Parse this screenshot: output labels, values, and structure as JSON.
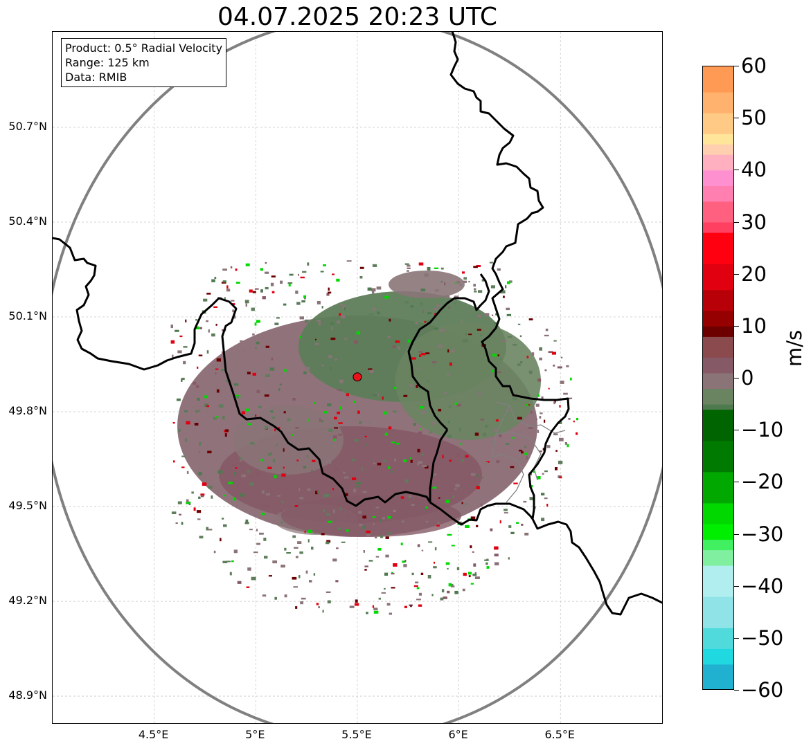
{
  "title": "04.07.2025 20:23 UTC",
  "info_box": {
    "product": "Product: 0.5° Radial Velocity",
    "range": "Range: 125 km",
    "data": "Data: RMIB"
  },
  "map": {
    "lon_range": [
      4.0,
      7.0
    ],
    "lat_range": [
      48.8,
      51.0
    ],
    "gridlines": true,
    "radar_site": {
      "lon": 5.5,
      "lat": 49.91,
      "color": "#e8141a"
    },
    "range_ring_color": "#808080",
    "x_ticks": [
      {
        "value": 4.5,
        "label": "4.5°E"
      },
      {
        "value": 5.0,
        "label": "5°E"
      },
      {
        "value": 5.5,
        "label": "5.5°E"
      },
      {
        "value": 6.0,
        "label": "6°E"
      },
      {
        "value": 6.5,
        "label": "6.5°E"
      }
    ],
    "y_ticks": [
      {
        "value": 50.7,
        "label": "50.7°N"
      },
      {
        "value": 50.4,
        "label": "50.4°N"
      },
      {
        "value": 50.1,
        "label": "50.1°N"
      },
      {
        "value": 49.8,
        "label": "49.8°N"
      },
      {
        "value": 49.5,
        "label": "49.5°N"
      },
      {
        "value": 49.2,
        "label": "49.2°N"
      },
      {
        "value": 48.9,
        "label": "48.9°N"
      }
    ]
  },
  "colorbar": {
    "unit": "m/s",
    "min": -60,
    "max": 60,
    "ticks": [
      {
        "value": 60,
        "label": "60"
      },
      {
        "value": 50,
        "label": "50"
      },
      {
        "value": 40,
        "label": "40"
      },
      {
        "value": 30,
        "label": "30"
      },
      {
        "value": 20,
        "label": "20"
      },
      {
        "value": 10,
        "label": "10"
      },
      {
        "value": 0,
        "label": "0"
      },
      {
        "value": -10,
        "label": "−10"
      },
      {
        "value": -20,
        "label": "−20"
      },
      {
        "value": -30,
        "label": "−30"
      },
      {
        "value": -40,
        "label": "−40"
      },
      {
        "value": -50,
        "label": "−50"
      },
      {
        "value": -60,
        "label": "−60"
      }
    ],
    "stops": [
      {
        "value": 60,
        "color": "#ff9a55"
      },
      {
        "value": 55,
        "color": "#ffb26e"
      },
      {
        "value": 51,
        "color": "#ffca85"
      },
      {
        "value": 47,
        "color": "#ffe59a"
      },
      {
        "value": 45,
        "color": "#ffcfb0"
      },
      {
        "value": 43,
        "color": "#ffb0c0"
      },
      {
        "value": 40,
        "color": "#ff90d0"
      },
      {
        "value": 37,
        "color": "#ff80b0"
      },
      {
        "value": 34,
        "color": "#ff6080"
      },
      {
        "value": 30,
        "color": "#ff4060"
      },
      {
        "value": 28,
        "color": "#ff0010"
      },
      {
        "value": 22,
        "color": "#e00010"
      },
      {
        "value": 17,
        "color": "#b80008"
      },
      {
        "value": 13,
        "color": "#960000"
      },
      {
        "value": 10,
        "color": "#6c0000"
      },
      {
        "value": 8,
        "color": "#8a4a4e"
      },
      {
        "value": 4,
        "color": "#855a66"
      },
      {
        "value": 1,
        "color": "#8a7478"
      },
      {
        "value": -2,
        "color": "#6a8462"
      },
      {
        "value": -5,
        "color": "#4f7a50"
      },
      {
        "value": -6,
        "color": "#006400"
      },
      {
        "value": -12,
        "color": "#007a00"
      },
      {
        "value": -18,
        "color": "#00a800"
      },
      {
        "value": -24,
        "color": "#00d800"
      },
      {
        "value": -28,
        "color": "#00ee00"
      },
      {
        "value": -31,
        "color": "#40f060"
      },
      {
        "value": -33,
        "color": "#80f0a0"
      },
      {
        "value": -36,
        "color": "#b0eef0"
      },
      {
        "value": -42,
        "color": "#90e4e8"
      },
      {
        "value": -48,
        "color": "#50dadc"
      },
      {
        "value": -52,
        "color": "#20d8e0"
      },
      {
        "value": -55,
        "color": "#20b0d0"
      },
      {
        "value": -60,
        "color": "#1f80c8"
      }
    ]
  }
}
